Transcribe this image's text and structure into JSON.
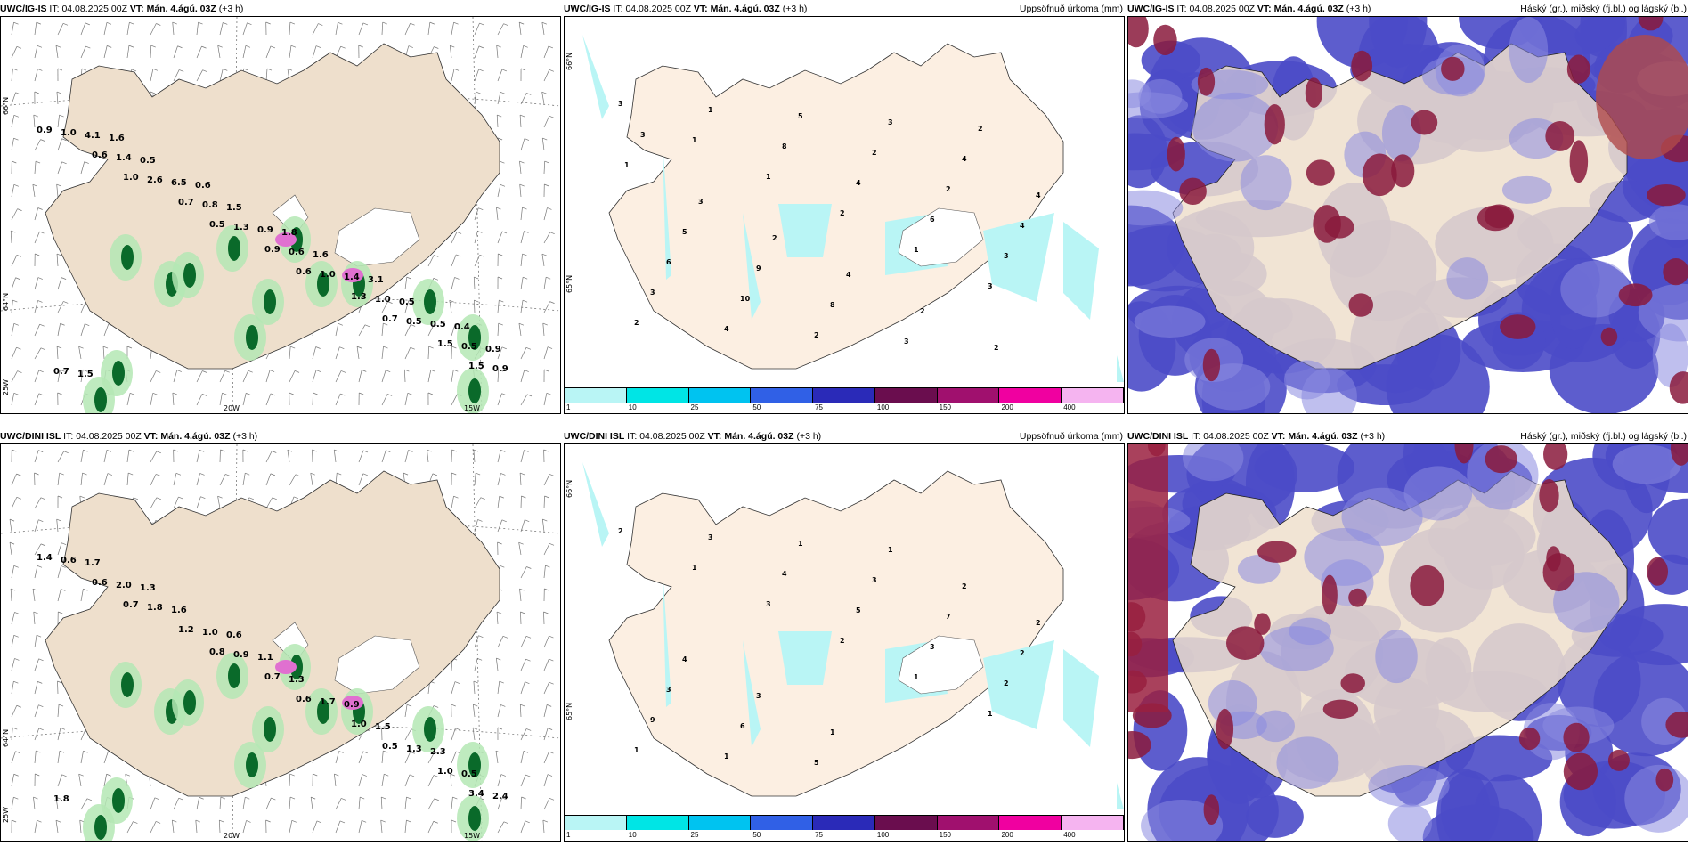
{
  "panels": [
    {
      "model": "UWC/IG-IS",
      "it_label": "IT:",
      "it_value": "04.08.2025 00Z",
      "vt_label": "VT:",
      "vt_value": "Mán. 4.ágú. 03Z",
      "offset": "(+3 h)",
      "right_title": ""
    },
    {
      "model": "UWC/IG-IS",
      "it_label": "IT:",
      "it_value": "04.08.2025 00Z",
      "vt_label": "VT:",
      "vt_value": "Mán. 4.ágú. 03Z",
      "offset": "(+3 h)",
      "right_title": "Uppsöfnuð úrkoma (mm)"
    },
    {
      "model": "UWC/IG-IS",
      "it_label": "IT:",
      "it_value": "04.08.2025 00Z",
      "vt_label": "VT:",
      "vt_value": "Mán. 4.ágú. 03Z",
      "offset": "(+3 h)",
      "right_title": "Háský (gr.), miðský (fj.bl.) og lágský (bl.)"
    },
    {
      "model": "UWC/DINI ISL",
      "it_label": "IT:",
      "it_value": "04.08.2025 00Z",
      "vt_label": "VT:",
      "vt_value": "Mán. 4.ágú. 03Z",
      "offset": "(+3 h)",
      "right_title": ""
    },
    {
      "model": "UWC/DINI ISL",
      "it_label": "IT:",
      "it_value": "04.08.2025 00Z",
      "vt_label": "VT:",
      "vt_value": "Mán. 4.ágú. 03Z",
      "offset": "(+3 h)",
      "right_title": "Uppsöfnuð úrkoma (mm)"
    },
    {
      "model": "UWC/DINI ISL",
      "it_label": "IT:",
      "it_value": "04.08.2025 00Z",
      "vt_label": "VT:",
      "vt_value": "Mán. 4.ágú. 03Z",
      "offset": "(+3 h)",
      "right_title": "Háský (gr.), miðský (fj.bl.) og lágský (bl.)"
    }
  ],
  "colorbar": {
    "ticks": [
      "1",
      "10",
      "25",
      "50",
      "75",
      "100",
      "150",
      "200",
      "400"
    ],
    "colors": [
      "#b9f5f5",
      "#00e5e5",
      "#00c3f0",
      "#3060e6",
      "#2a2ab8",
      "#6a0d4e",
      "#a0106e",
      "#f000a0",
      "#f5b4f0"
    ]
  },
  "axis_labels": {
    "lat66": "66°N",
    "lat64": "64°N",
    "lat65": "65°N",
    "lon20": "20W",
    "lon15": "15W",
    "lon25": "25W"
  },
  "colors": {
    "land": "#eedfcc",
    "land_precip": "#fcefe2",
    "precip_light": "#b9f5f5",
    "cloud_low": "#4b4bc8",
    "cloud_mid": "#8a8ae0",
    "cloud_high": "#8a1a3c",
    "green_light": "#b4e8b4",
    "green_dark": "#0a6a2a",
    "pink": "#e070d0"
  },
  "precip_values_top_left": [
    "0.9",
    "1.0",
    "0.5",
    "0.6",
    "0.7",
    "1.5",
    "0.6",
    "0.7",
    "0.9",
    "1.3",
    "1.5",
    "1.0",
    "2.6",
    "1.3",
    "1.0",
    "0.5",
    "0.9",
    "1.4",
    "0.8",
    "0.6",
    "1.0",
    "0.5",
    "4.1",
    "6.5",
    "0.9",
    "1.4",
    "0.5",
    "0.7",
    "0.5",
    "1.5",
    "1.6",
    "0.5",
    "0.9",
    "1.6",
    "0.6",
    "1.8",
    "3.1",
    "0.4",
    "1.5"
  ],
  "precip_values_top_mid": [
    "3",
    "1",
    "1",
    "2",
    "1",
    "3",
    "2",
    "1",
    "8",
    "4",
    "6",
    "3",
    "3",
    "4",
    "5",
    "2",
    "2",
    "4",
    "6",
    "10",
    "2",
    "3",
    "4",
    "4",
    "5",
    "9",
    "8",
    "3",
    "2",
    "1",
    "3",
    "2",
    "4",
    "2",
    "2",
    "3"
  ],
  "precip_values_bot_left": [
    "1.4",
    "0.7",
    "0.8",
    "0.6",
    "0.5",
    "3.4",
    "0.6",
    "1.2",
    "0.7",
    "1.0",
    "1.0",
    "0.6",
    "1.8",
    "0.9",
    "1.7",
    "1.3",
    "2.4",
    "2.0",
    "1.0",
    "1.3",
    "1.5",
    "0.5",
    "1.7",
    "1.6",
    "1.1",
    "0.9",
    "2.3",
    "1.8",
    "1.3",
    "0.6"
  ],
  "precip_values_bot_mid": [
    "2",
    "1",
    "3",
    "2",
    "1",
    "1",
    "1",
    "3",
    "4",
    "5",
    "3",
    "2",
    "9",
    "1",
    "1",
    "3",
    "7",
    "2",
    "3",
    "6",
    "5",
    "1",
    "2",
    "2",
    "4",
    "3",
    "1"
  ]
}
